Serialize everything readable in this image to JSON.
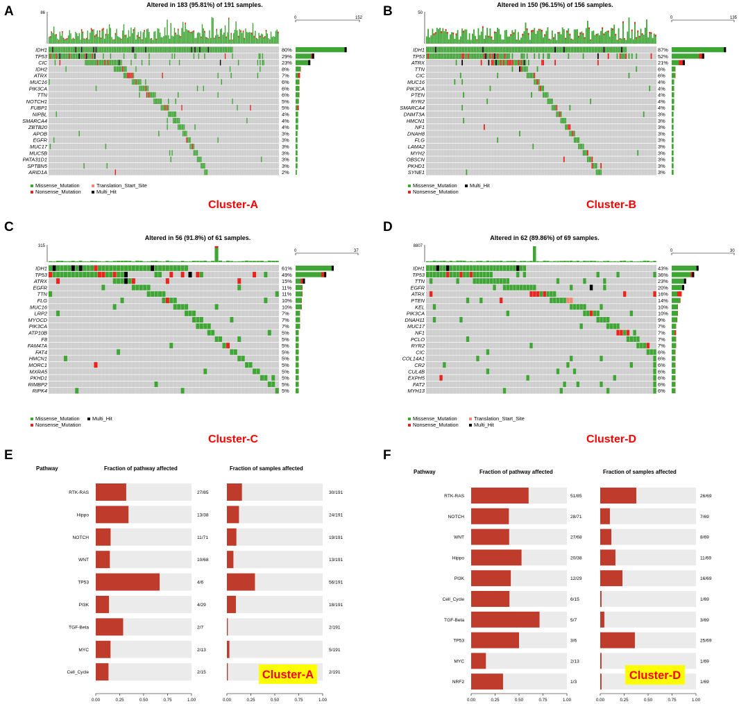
{
  "colors": {
    "missense": "#3fa535",
    "nonsense": "#e8241c",
    "translation": "#f0866a",
    "multi": "#000000",
    "grid_bg": "#cfcfcf",
    "pathway_bar": "#bf3b2c",
    "pathway_bg": "#ebebeb",
    "cluster_label": "#ff0000",
    "highlight": "#ffff00"
  },
  "chart_data": [
    {
      "type": "oncoplot",
      "panel": "A",
      "title": "Altered in 183 (95.81%) of 191 samples.",
      "tmb_max": "86",
      "gene_axis": [
        "0",
        "152"
      ],
      "n_samples": 191,
      "genes": [
        "IDH1",
        "TP53",
        "CIC",
        "IDH2",
        "ATRX",
        "MUC16",
        "PIK3CA",
        "TTN",
        "NOTCH1",
        "FUBP1",
        "NIPBL",
        "SMARCA4",
        "ZBTB20",
        "APOB",
        "EGFR",
        "MUC17",
        "MUC5B",
        "PATA31D1",
        "SPTBN5",
        "ARID1A"
      ],
      "percentages": [
        "80%",
        "29%",
        "23%",
        "8%",
        "7%",
        "6%",
        "6%",
        "6%",
        "5%",
        "5%",
        "4%",
        "4%",
        "4%",
        "3%",
        "3%",
        "3%",
        "3%",
        "3%",
        "3%",
        "2%"
      ],
      "legend": [
        "Missense_Mutation",
        "Translation_Start_Site",
        "Nonsense_Mutation",
        "Multi_Hit"
      ],
      "cluster_label": "Cluster-A"
    },
    {
      "type": "oncoplot",
      "panel": "B",
      "title": "Altered in 150 (96.15%) of 156 samples.",
      "tmb_max": "50",
      "gene_axis": [
        "0",
        "135"
      ],
      "n_samples": 156,
      "genes": [
        "IDH1",
        "TP53",
        "ATRX",
        "TTN",
        "CIC",
        "MUC16",
        "PIK3CA",
        "PTEN",
        "RYR2",
        "SMARCA4",
        "DNMT3A",
        "HMCN1",
        "NF1",
        "DNAH8",
        "FLG",
        "LAMA2",
        "MYH2",
        "OBSCN",
        "PKHD1",
        "SYNE1"
      ],
      "percentages": [
        "87%",
        "52%",
        "21%",
        "6%",
        "6%",
        "4%",
        "4%",
        "4%",
        "4%",
        "4%",
        "3%",
        "3%",
        "3%",
        "3%",
        "3%",
        "3%",
        "3%",
        "3%",
        "3%",
        "3%"
      ],
      "legend": [
        "Missense_Mutation",
        "Multi_Hit",
        "Nonsense_Mutation"
      ],
      "cluster_label": "Cluster-B"
    },
    {
      "type": "oncoplot",
      "panel": "C",
      "title": "Altered in 56 (91.8%) of 61 samples.",
      "tmb_max": "315",
      "gene_axis": [
        "0",
        "37"
      ],
      "n_samples": 61,
      "genes": [
        "IDH1",
        "TP53",
        "ATRX",
        "EGFR",
        "TTN",
        "FLG",
        "MUC16",
        "LRP2",
        "MYOCD",
        "PIK3CA",
        "ATP10B",
        "F8",
        "FAM47A",
        "FAT4",
        "HMCN1",
        "MORC1",
        "MXRA5",
        "PKHD1",
        "RIMBP2",
        "RIPK4"
      ],
      "percentages": [
        "61%",
        "49%",
        "15%",
        "11%",
        "11%",
        "10%",
        "10%",
        "7%",
        "7%",
        "7%",
        "5%",
        "5%",
        "5%",
        "5%",
        "5%",
        "5%",
        "5%",
        "5%",
        "5%",
        "5%"
      ],
      "legend": [
        "Missense_Mutation",
        "Multi_Hit",
        "Nonsense_Mutation"
      ],
      "cluster_label": "Cluster-C"
    },
    {
      "type": "oncoplot",
      "panel": "D",
      "title": "Altered in 62 (89.86%) of 69 samples.",
      "tmb_max": "8807",
      "gene_axis": [
        "0",
        "30"
      ],
      "n_samples": 69,
      "genes": [
        "IDH1",
        "TP53",
        "TTN",
        "EGFR",
        "ATRX",
        "PTEN",
        "KEL",
        "PIK3CA",
        "DNAH11",
        "MUC17",
        "NF1",
        "PCLO",
        "RYR2",
        "CIC",
        "COL14A1",
        "CR2",
        "CUL4B",
        "EXPH5",
        "FAT2",
        "MYH13"
      ],
      "percentages": [
        "43%",
        "36%",
        "23%",
        "20%",
        "16%",
        "14%",
        "10%",
        "10%",
        "9%",
        "7%",
        "7%",
        "7%",
        "7%",
        "6%",
        "6%",
        "6%",
        "6%",
        "6%",
        "6%",
        "6%"
      ],
      "legend": [
        "Missense_Mutation",
        "Translation_Start_Site",
        "Nonsense_Mutation",
        "Multi_Hit"
      ],
      "cluster_label": "Cluster-D"
    },
    {
      "type": "bar",
      "panel": "E",
      "header_pathway": "Pathway",
      "header_fraction_pathway": "Fraction of pathway affected",
      "header_fraction_samples": "Fraction of samples affected",
      "pathways": [
        "RTK-RAS",
        "Hippo",
        "NOTCH",
        "WNT",
        "TP53",
        "PI3K",
        "TGF-Beta",
        "MYC",
        "Cell_Cycle"
      ],
      "pathway_fraction": [
        0.318,
        0.342,
        0.155,
        0.147,
        0.667,
        0.138,
        0.286,
        0.154,
        0.133
      ],
      "pathway_labels": [
        "27/85",
        "13/38",
        "11/71",
        "10/68",
        "4/6",
        "4/29",
        "2/7",
        "2/13",
        "2/15"
      ],
      "sample_fraction": [
        0.157,
        0.126,
        0.099,
        0.068,
        0.293,
        0.094,
        0.01,
        0.026,
        0.01
      ],
      "sample_labels": [
        "30/191",
        "24/191",
        "19/191",
        "13/191",
        "56/191",
        "18/191",
        "2/191",
        "5/191",
        "2/191"
      ],
      "xticks": [
        "0.00",
        "0.25",
        "0.50",
        "0.75",
        "1.00"
      ],
      "xlim": [
        0,
        1
      ],
      "cluster_label": "Cluster-A"
    },
    {
      "type": "bar",
      "panel": "F",
      "header_pathway": "Pathway",
      "header_fraction_pathway": "Fraction of pathway affected",
      "header_fraction_samples": "Fraction of samples affected",
      "pathways": [
        "RTK-RAS",
        "NOTCH",
        "WNT",
        "Hippo",
        "PI3K",
        "Cell_Cycle",
        "TGF-Beta",
        "TP53",
        "MYC",
        "NRF2"
      ],
      "pathway_fraction": [
        0.6,
        0.394,
        0.397,
        0.526,
        0.414,
        0.4,
        0.714,
        0.5,
        0.154,
        0.333
      ],
      "pathway_labels": [
        "51/85",
        "28/71",
        "27/68",
        "20/38",
        "12/29",
        "6/15",
        "5/7",
        "3/6",
        "2/13",
        "1/3"
      ],
      "sample_fraction": [
        0.377,
        0.101,
        0.116,
        0.159,
        0.232,
        0.014,
        0.043,
        0.362,
        0.014,
        0.014
      ],
      "sample_labels": [
        "26/69",
        "7/69",
        "8/69",
        "11/69",
        "16/69",
        "1/69",
        "3/69",
        "25/69",
        "1/69",
        "1/69"
      ],
      "xticks": [
        "0.00",
        "0.25",
        "0.50",
        "0.75",
        "1.00"
      ],
      "xlim": [
        0,
        1
      ],
      "cluster_label": "Cluster-D"
    }
  ]
}
